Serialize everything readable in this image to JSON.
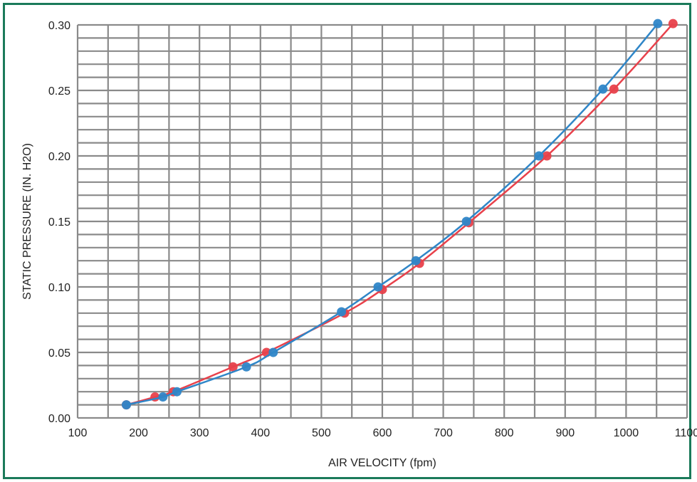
{
  "chart_data": {
    "type": "scatter",
    "title": "",
    "xlabel": "AIR VELOCITY (fpm)",
    "ylabel": "STATIC PRESSURE (IN. H2O)",
    "xlim": [
      100,
      1100
    ],
    "ylim": [
      0.0,
      0.3
    ],
    "x_ticks": [
      "100",
      "200",
      "300",
      "400",
      "500",
      "600",
      "700",
      "800",
      "900",
      "1000",
      "1100"
    ],
    "y_ticks": [
      "0.00",
      "0.05",
      "0.10",
      "0.15",
      "0.20",
      "0.25",
      "0.30"
    ],
    "x_minor_step": 50,
    "y_minor_step": 0.01,
    "grid": true,
    "legend": "none",
    "series": [
      {
        "color": "#e8414b",
        "points": [
          [
            180,
            0.01
          ],
          [
            227,
            0.016
          ],
          [
            257,
            0.02
          ],
          [
            355,
            0.039
          ],
          [
            410,
            0.05
          ],
          [
            538,
            0.08
          ],
          [
            600,
            0.098
          ],
          [
            661,
            0.118
          ],
          [
            742,
            0.149
          ],
          [
            870,
            0.2
          ],
          [
            980,
            0.251
          ],
          [
            1077,
            0.301
          ]
        ]
      },
      {
        "color": "#2f86c8",
        "points": [
          [
            180,
            0.01
          ],
          [
            240,
            0.016
          ],
          [
            263,
            0.02
          ],
          [
            377,
            0.039
          ],
          [
            421,
            0.05
          ],
          [
            533,
            0.081
          ],
          [
            593,
            0.1
          ],
          [
            655,
            0.12
          ],
          [
            738,
            0.15
          ],
          [
            857,
            0.2
          ],
          [
            962,
            0.251
          ],
          [
            1052,
            0.301
          ]
        ]
      }
    ]
  }
}
